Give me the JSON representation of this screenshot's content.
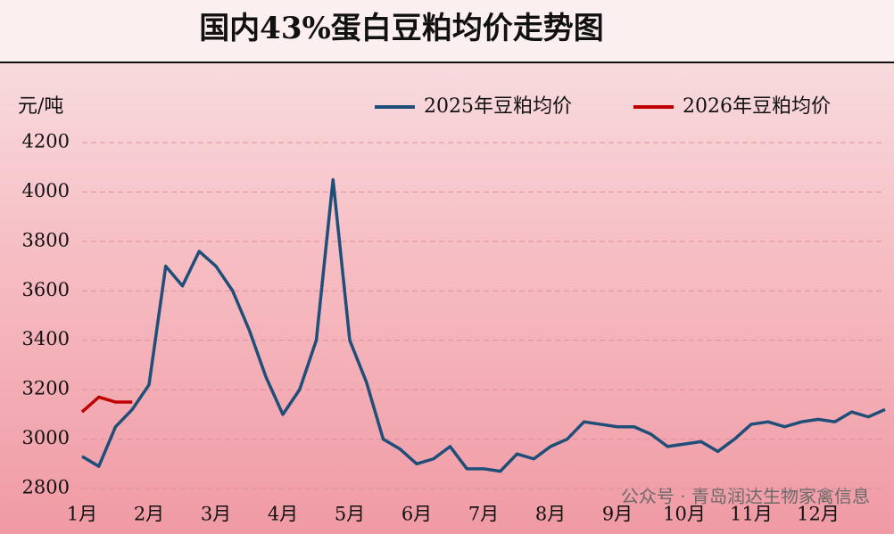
{
  "chart_data": {
    "type": "line",
    "title": "国内43%蛋白豆粕均价走势图",
    "y_label": "元/吨",
    "annotation": "公众号 · 青岛润达生物家禽信息",
    "categories": [
      "1月",
      null,
      null,
      null,
      "2月",
      null,
      null,
      null,
      "3月",
      null,
      null,
      null,
      "4月",
      null,
      null,
      null,
      "5月",
      null,
      null,
      null,
      "6月",
      null,
      null,
      null,
      "7月",
      null,
      null,
      null,
      "8月",
      null,
      null,
      null,
      "9月",
      null,
      null,
      null,
      "10月",
      null,
      null,
      null,
      "11月",
      null,
      null,
      null,
      "12月",
      null,
      null,
      null,
      null
    ],
    "series": [
      {
        "name": "2025年豆粕均价",
        "color": "#1f4e79",
        "values": [
          2930,
          2890,
          3050,
          3120,
          3220,
          3700,
          3620,
          3760,
          3700,
          3600,
          3440,
          3250,
          3100,
          3200,
          3400,
          4050,
          3400,
          3230,
          3000,
          2960,
          2900,
          2920,
          2970,
          2880,
          2880,
          2870,
          2940,
          2920,
          2970,
          3000,
          3070,
          3060,
          3050,
          3050,
          3020,
          2970,
          2980,
          2990,
          2950,
          3000,
          3060,
          3070,
          3050,
          3070,
          3080,
          3070,
          3110,
          3090,
          3120
        ]
      },
      {
        "name": "2026年豆粕均价",
        "color": "#c00000",
        "values": [
          3110,
          3170,
          3150,
          3150,
          null,
          null,
          null,
          null,
          null,
          null,
          null,
          null,
          null,
          null,
          null,
          null,
          null,
          null,
          null,
          null,
          null,
          null,
          null,
          null,
          null,
          null,
          null,
          null,
          null,
          null,
          null,
          null,
          null,
          null,
          null,
          null,
          null,
          null,
          null,
          null,
          null,
          null,
          null,
          null,
          null,
          null,
          null,
          null,
          null
        ]
      }
    ],
    "ylim": [
      2800,
      4200
    ],
    "yticks": [
      2800,
      3000,
      3200,
      3400,
      3600,
      3800,
      4000,
      4200
    ],
    "grid": true,
    "legend": "top-right"
  }
}
